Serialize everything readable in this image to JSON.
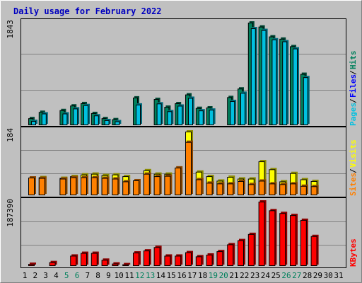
{
  "chart_data": [
    {
      "type": "bar",
      "title": "Daily usage for February 2022",
      "categories": [
        "1",
        "2",
        "3",
        "4",
        "5",
        "6",
        "7",
        "8",
        "9",
        "10",
        "11",
        "12",
        "13",
        "14",
        "15",
        "16",
        "17",
        "18",
        "19",
        "20",
        "21",
        "22",
        "23",
        "24",
        "25",
        "26",
        "27",
        "28",
        "29",
        "30",
        "31"
      ],
      "weekend_days": [
        "5",
        "6",
        "12",
        "13",
        "19",
        "20",
        "26",
        "27"
      ],
      "ymax_label": "1843",
      "ylim": [
        0,
        1843
      ],
      "series": [
        {
          "name": "Hits",
          "color": "#00805c",
          "values": [
            125,
            238,
            0,
            270,
            353,
            395,
            217,
            125,
            106,
            0,
            497,
            0,
            470,
            330,
            394,
            552,
            309,
            318,
            0,
            504,
            658,
            1843,
            1771,
            1594,
            1553,
            1418,
            921,
            0,
            0,
            0,
            0
          ]
        },
        {
          "name": "Files",
          "color": "#0000ff",
          "values": [
            0,
            0,
            0,
            0,
            0,
            0,
            0,
            0,
            0,
            0,
            0,
            0,
            0,
            0,
            0,
            0,
            0,
            0,
            0,
            0,
            0,
            0,
            0,
            0,
            0,
            0,
            0,
            0,
            0,
            0,
            0
          ]
        },
        {
          "name": "Pages",
          "color": "#00c0e0",
          "values": [
            75,
            210,
            0,
            210,
            300,
            360,
            175,
            90,
            70,
            0,
            370,
            0,
            390,
            250,
            350,
            490,
            265,
            278,
            0,
            433,
            581,
            1741,
            1709,
            1541,
            1506,
            1378,
            862,
            0,
            0,
            0,
            0
          ]
        }
      ]
    },
    {
      "type": "bar",
      "ymax_label": "184",
      "ylim": [
        0,
        184
      ],
      "series": [
        {
          "name": "Visits",
          "color": "#ffff00",
          "values": [
            0,
            52,
            0,
            50,
            55,
            60,
            62,
            58,
            60,
            55,
            0,
            72,
            62,
            62,
            68,
            184,
            68,
            55,
            42,
            53,
            48,
            48,
            98,
            75,
            40,
            64,
            46,
            41,
            0,
            0,
            0
          ]
        },
        {
          "name": "Sites",
          "color": "#ff8000",
          "values": [
            51,
            50,
            0,
            48,
            52,
            52,
            52,
            50,
            48,
            40,
            43,
            62,
            55,
            56,
            80,
            154,
            46,
            36,
            34,
            34,
            41,
            32,
            42,
            34,
            32,
            34,
            27,
            26,
            0,
            0,
            0
          ]
        }
      ]
    },
    {
      "type": "bar",
      "ymax_label": "187390",
      "ylim": [
        0,
        187390
      ],
      "series": [
        {
          "name": "KBytes",
          "color": "#ff0000",
          "values": [
            6000,
            0,
            11000,
            0,
            30000,
            38000,
            38000,
            18000,
            7000,
            5000,
            39000,
            45000,
            55000,
            30000,
            30000,
            40000,
            28000,
            33000,
            43000,
            63000,
            75000,
            93000,
            187390,
            162000,
            154000,
            148000,
            134000,
            87000,
            0,
            0,
            0
          ]
        }
      ]
    }
  ]
}
